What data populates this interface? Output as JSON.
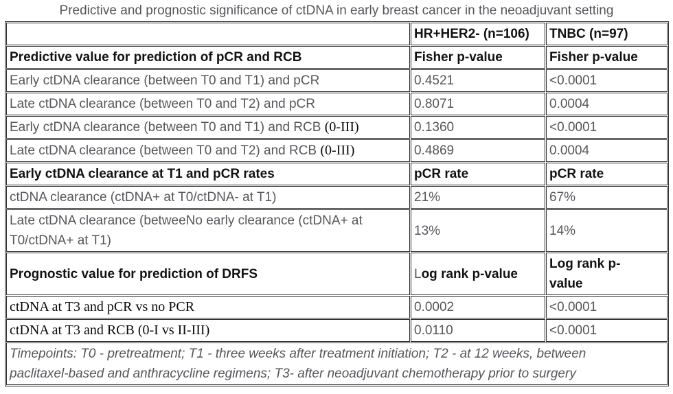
{
  "title": "Predictive and prognostic significance of ctDNA in early breast cancer in the neoadjuvant setting",
  "colors": {
    "text_gray": "#54565b",
    "text_black": "#121212",
    "border": "#2e2e2e",
    "background": "#ffffff"
  },
  "table": {
    "column_headers": [
      "",
      "HR+HER2- (n=106)",
      "TNBC (n=97)"
    ],
    "rows": [
      {
        "cls": "bold",
        "cells": [
          "",
          "HR+HER2- (n=106)",
          "TNBC (n=97)"
        ]
      },
      {
        "cls": "bold",
        "cells": [
          "Predictive value for prediction of pCR and RCB",
          "Fisher p-value",
          "Fisher p-value"
        ]
      },
      {
        "cls": "",
        "cells": [
          "Early ctDNA clearance (between T0 and T1) and pCR",
          "0.4521",
          "<0.0001"
        ]
      },
      {
        "cls": "",
        "cells": [
          "Late ctDNA clearance (between T0 and T2) and pCR",
          "0.8071",
          "0.0004"
        ]
      },
      {
        "cls": "",
        "cells": [
          [
            {
              "t": "Early ctDNA clearance (between T0 and T1) and RCB "
            },
            {
              "t": "(0-III)",
              "cls": "serif"
            }
          ],
          "0.1360",
          "<0.0001"
        ]
      },
      {
        "cls": "",
        "cells": [
          [
            {
              "t": "Late ctDNA clearance (between T0 and T2) and RCB "
            },
            {
              "t": "(0-III)",
              "cls": "serif"
            }
          ],
          "0.4869",
          "0.0004"
        ]
      },
      {
        "cls": "bold",
        "cells": [
          "Early ctDNA clearance at T1 and pCR rates",
          "pCR rate",
          "pCR rate"
        ]
      },
      {
        "cls": "",
        "cells": [
          "ctDNA clearance (ctDNA+ at T0/ctDNA- at T1)",
          "21%",
          "67%"
        ]
      },
      {
        "cls": "",
        "cells": [
          {
            "cls": "w530",
            "segs": [
              {
                "t": "Late ctDNA clearance (betweeNo early clearance (ctDNA+ at T0/ctDNA+ at T1)"
              }
            ]
          },
          "13%",
          "14%"
        ]
      },
      {
        "cls": "bold",
        "cells": [
          "Prognostic value for prediction of DRFS",
          [
            {
              "t": "L",
              "cls": "thin"
            },
            {
              "t": "og rank p-value"
            }
          ],
          {
            "cls": "w125",
            "segs": [
              {
                "t": "Log rank p-value"
              }
            ]
          }
        ]
      },
      {
        "cls": "",
        "cells": [
          {
            "cls": "serif",
            "segs": [
              {
                "t": "ctDNA at T3 and pCR vs no PCR"
              }
            ]
          },
          "0.0002",
          "<0.0001"
        ]
      },
      {
        "cls": "",
        "cells": [
          {
            "cls": "serif",
            "segs": [
              {
                "t": "ctDNA at T3 and RCB (0-I vs II-III)"
              }
            ]
          },
          "0.0110",
          "<0.0001"
        ]
      }
    ],
    "footnote": "Timepoints: T0 - pretreatment; T1 - three weeks after treatment initiation; T2 - at 12 weeks, between paclitaxel-based and anthracycline regimens; T3- after neoadjuvant chemotherapy prior to surgery"
  }
}
